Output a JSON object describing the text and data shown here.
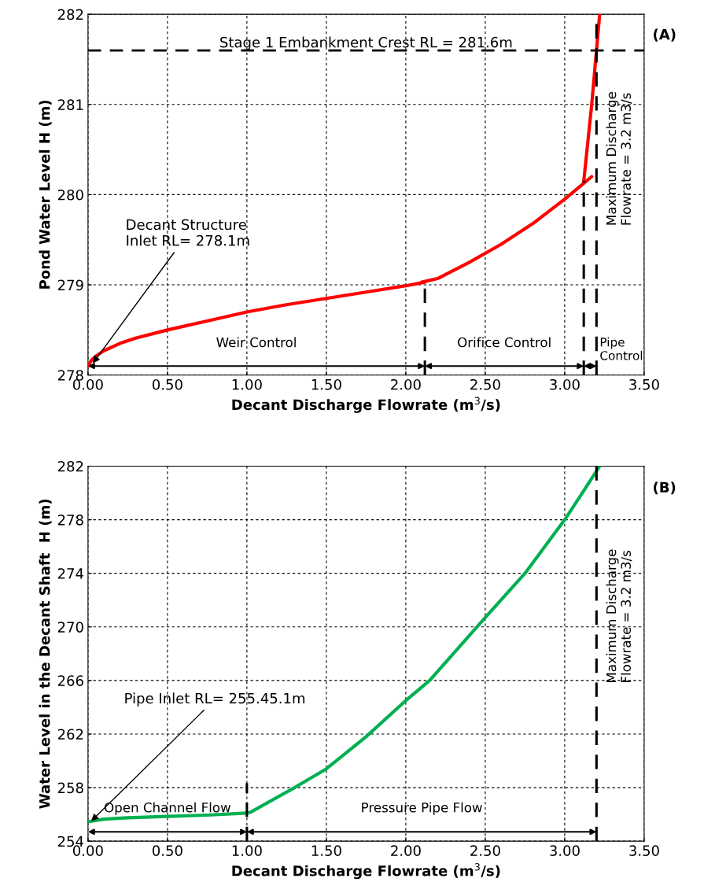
{
  "chart_data": [
    {
      "type": "line",
      "title": "(A)",
      "xlabel": "Decant Discharge Flowrate (m$^{3}$/s)",
      "ylabel": "Pond Water Level H (m)",
      "xlim": [
        0,
        3.5
      ],
      "xticks": [
        {
          "value": 0,
          "label": "0.00"
        },
        {
          "value": 0.5,
          "label": "0.50"
        },
        {
          "value": 1,
          "label": "1.00"
        },
        {
          "value": 1.5,
          "label": "1.50"
        },
        {
          "value": 2,
          "label": "2.00"
        },
        {
          "value": 2.5,
          "label": "2.50"
        },
        {
          "value": 3,
          "label": "3.00"
        },
        {
          "value": 3.5,
          "label": "3.50"
        }
      ],
      "ylim": [
        278,
        282
      ],
      "yticks": [
        278,
        279,
        280,
        281,
        282
      ],
      "grid": true,
      "series": [
        {
          "color": "#ff0000",
          "x": [
            0,
            0.02,
            0.05,
            0.1,
            0.2,
            0.3,
            0.5,
            0.75,
            1.0,
            1.25,
            1.5,
            1.75,
            2.0,
            2.12
          ],
          "values": [
            278.1,
            278.16,
            278.21,
            278.27,
            278.35,
            278.41,
            278.5,
            278.6,
            278.7,
            278.78,
            278.85,
            278.92,
            278.99,
            279.03
          ]
        },
        {
          "color": "#ff0000",
          "x": [
            2.1,
            2.2,
            2.4,
            2.6,
            2.8,
            3.0,
            3.17
          ],
          "values": [
            279.03,
            279.07,
            279.25,
            279.45,
            279.68,
            279.95,
            280.2
          ]
        },
        {
          "color": "#ff0000",
          "x": [
            3.12,
            3.17,
            3.22
          ],
          "values": [
            280.15,
            281.0,
            282.0
          ]
        }
      ],
      "ref_lines": [
        {
          "axis": "y",
          "value": 281.6,
          "label": "Stage 1 Embankment Crest RL = 281.6m",
          "color": "#000000",
          "line_style": "dashed"
        },
        {
          "axis": "x",
          "value": 2.12,
          "label": null,
          "color": "#000000",
          "line_style": "dashed"
        },
        {
          "axis": "x",
          "value": 3.12,
          "label": null,
          "color": "#000000",
          "line_style": "dashed"
        },
        {
          "axis": "x",
          "value": 3.2,
          "label": "Maximum Discharge\nFlowrate = 3.2 m3/s",
          "color": "#000000",
          "line_style": "dashed"
        }
      ],
      "annotations": [
        {
          "text": "Decant Structure\nInlet RL= 278.1m",
          "x": 0.03,
          "y": 278.13
        },
        "Weir Control",
        "Orifice Control",
        "Pipe\nControl"
      ]
    },
    {
      "type": "line",
      "title": "(B)",
      "xlabel": "Decant Discharge Flowrate (m$^{3}$/s)",
      "ylabel": "Water Level in the Decant Shaft  H (m)",
      "xlim": [
        0,
        3.5
      ],
      "xticks": [
        {
          "value": 0,
          "label": "0.00"
        },
        {
          "value": 0.5,
          "label": "0.50"
        },
        {
          "value": 1,
          "label": "1.00"
        },
        {
          "value": 1.5,
          "label": "1.50"
        },
        {
          "value": 2,
          "label": "2.00"
        },
        {
          "value": 2.5,
          "label": "2.50"
        },
        {
          "value": 3,
          "label": "3.00"
        },
        {
          "value": 3.5,
          "label": "3.50"
        }
      ],
      "ylim": [
        254,
        282
      ],
      "yticks": [
        254,
        258,
        262,
        266,
        270,
        274,
        278,
        282
      ],
      "grid": true,
      "series": [
        {
          "color": "#00b050",
          "x": [
            0,
            0.1,
            0.25,
            0.5,
            0.75,
            1.0,
            1.02,
            1.3,
            1.5,
            1.75,
            2.0,
            2.15,
            2.5,
            2.75,
            3.0,
            3.1,
            3.22
          ],
          "values": [
            255.45,
            255.65,
            255.75,
            255.85,
            255.95,
            256.1,
            256.15,
            258.0,
            259.4,
            261.8,
            264.5,
            266.0,
            270.7,
            274.0,
            278.0,
            279.8,
            282.0
          ]
        }
      ],
      "ref_lines": [
        {
          "axis": "x",
          "value": 1.0,
          "label": null,
          "color": "#000000",
          "line_style": "dashed"
        },
        {
          "axis": "x",
          "value": 3.2,
          "label": "Maximum Discharge\nFlowrate = 3.2 m3/s",
          "color": "#000000",
          "line_style": "dashed"
        }
      ],
      "annotations": [
        {
          "text": "Pipe Inlet RL= 255.45.1m",
          "x": 0.02,
          "y": 255.5
        },
        "Open Channel Flow",
        "Pressure Pipe Flow"
      ]
    }
  ]
}
